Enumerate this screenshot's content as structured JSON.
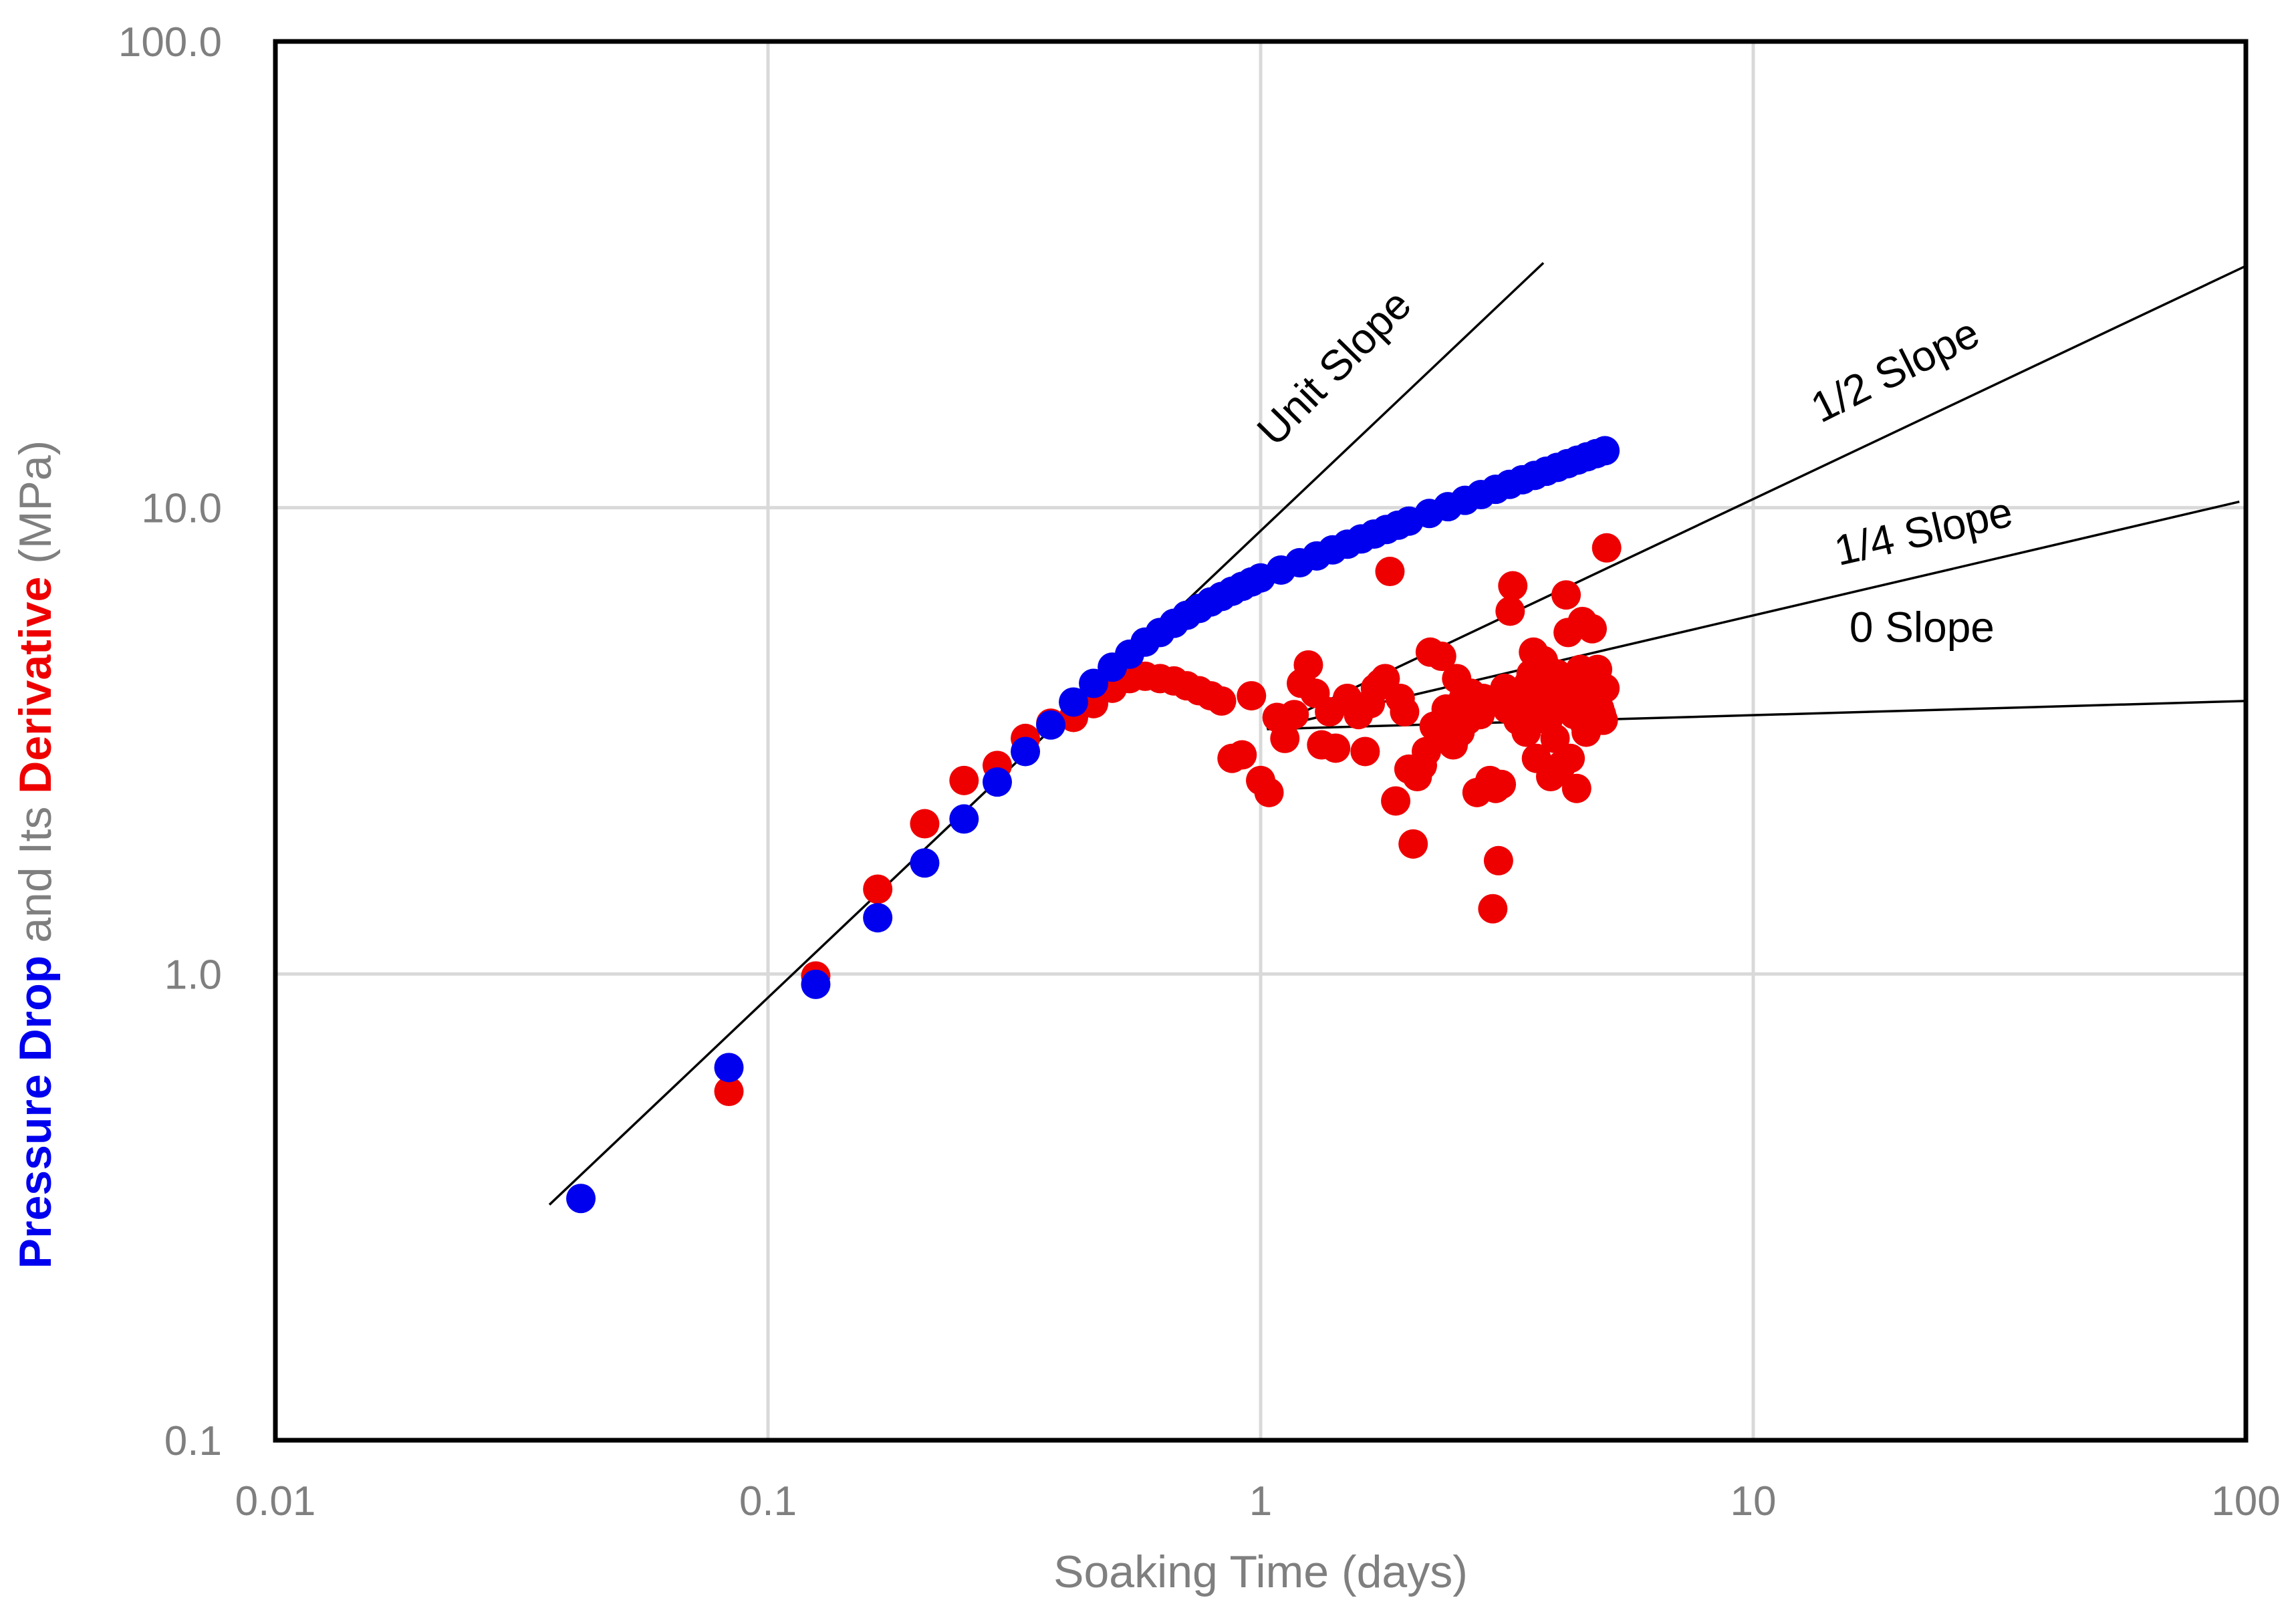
{
  "chart_data": {
    "type": "scatter",
    "xscale": "log",
    "yscale": "log",
    "xlim": [
      0.01,
      100
    ],
    "ylim": [
      0.1,
      100
    ],
    "grid": true,
    "legend": "none",
    "xlabel": "Soaking Time (days)",
    "ylabel_parts": [
      {
        "text": "Pressure Drop",
        "color": "#0000ee",
        "bold": true
      },
      {
        "text": " and Its ",
        "color": "#7f7f7f",
        "bold": false
      },
      {
        "text": "Derivative",
        "color": "#ee0000",
        "bold": true
      },
      {
        "text": " (MPa)",
        "color": "#7f7f7f",
        "bold": false
      }
    ],
    "xticks": [
      {
        "value": 0.01,
        "label": "0.01"
      },
      {
        "value": 0.1,
        "label": "0.1"
      },
      {
        "value": 1,
        "label": "1"
      },
      {
        "value": 10,
        "label": "10"
      },
      {
        "value": 100,
        "label": "100"
      }
    ],
    "yticks": [
      {
        "value": 0.1,
        "label": "0.1"
      },
      {
        "value": 1,
        "label": "1.0"
      },
      {
        "value": 10,
        "label": "10.0"
      },
      {
        "value": 100,
        "label": "100.0"
      }
    ],
    "series": [
      {
        "color": "#0000ee",
        "points": [
          [
            0.0417,
            0.33
          ],
          [
            0.0833,
            0.63
          ],
          [
            0.125,
            0.95
          ],
          [
            0.167,
            1.32
          ],
          [
            0.208,
            1.73
          ],
          [
            0.25,
            2.15
          ],
          [
            0.292,
            2.58
          ],
          [
            0.333,
            3.0
          ],
          [
            0.375,
            3.42
          ],
          [
            0.417,
            3.83
          ],
          [
            0.458,
            4.2
          ],
          [
            0.5,
            4.55
          ],
          [
            0.542,
            4.85
          ],
          [
            0.583,
            5.15
          ],
          [
            0.625,
            5.4
          ],
          [
            0.667,
            5.65
          ],
          [
            0.708,
            5.88
          ],
          [
            0.75,
            6.08
          ],
          [
            0.792,
            6.28
          ],
          [
            0.833,
            6.45
          ],
          [
            0.875,
            6.62
          ],
          [
            0.917,
            6.78
          ],
          [
            0.958,
            6.93
          ],
          [
            1.0,
            7.07
          ],
          [
            1.1,
            7.35
          ],
          [
            1.2,
            7.62
          ],
          [
            1.3,
            7.88
          ],
          [
            1.4,
            8.12
          ],
          [
            1.5,
            8.35
          ],
          [
            1.6,
            8.57
          ],
          [
            1.7,
            8.78
          ],
          [
            1.8,
            8.98
          ],
          [
            1.9,
            9.17
          ],
          [
            2.0,
            9.36
          ],
          [
            2.2,
            9.72
          ],
          [
            2.4,
            10.05
          ],
          [
            2.6,
            10.37
          ],
          [
            2.8,
            10.67
          ],
          [
            3.0,
            10.95
          ],
          [
            3.2,
            11.22
          ],
          [
            3.4,
            11.48
          ],
          [
            3.6,
            11.73
          ],
          [
            3.8,
            11.97
          ],
          [
            4.0,
            12.2
          ],
          [
            4.2,
            12.43
          ],
          [
            4.4,
            12.65
          ],
          [
            4.6,
            12.86
          ],
          [
            4.8,
            13.06
          ],
          [
            5.0,
            13.25
          ]
        ]
      },
      {
        "color": "#ee0000",
        "points": [
          [
            0.0833,
            0.56
          ],
          [
            0.125,
            0.99
          ],
          [
            0.167,
            1.52
          ],
          [
            0.208,
            2.1
          ],
          [
            0.25,
            2.6
          ],
          [
            0.292,
            2.8
          ],
          [
            0.333,
            3.2
          ],
          [
            0.375,
            3.45
          ],
          [
            0.417,
            3.55
          ],
          [
            0.458,
            3.8
          ],
          [
            0.5,
            4.1
          ],
          [
            0.542,
            4.3
          ],
          [
            0.583,
            4.35
          ],
          [
            0.625,
            4.3
          ],
          [
            0.667,
            4.25
          ],
          [
            0.708,
            4.15
          ],
          [
            0.75,
            4.05
          ],
          [
            0.792,
            3.95
          ],
          [
            0.833,
            3.85
          ],
          [
            0.875,
            2.9
          ],
          [
            0.917,
            2.95
          ],
          [
            0.958,
            3.95
          ],
          [
            1.0,
            2.6
          ],
          [
            1.04,
            2.45
          ],
          [
            1.08,
            3.55
          ],
          [
            1.12,
            3.2
          ],
          [
            1.17,
            3.6
          ],
          [
            1.21,
            4.2
          ],
          [
            1.25,
            4.6
          ],
          [
            1.29,
            4.0
          ],
          [
            1.33,
            3.1
          ],
          [
            1.38,
            3.65
          ],
          [
            1.42,
            3.05
          ],
          [
            1.5,
            3.9
          ],
          [
            1.58,
            3.6
          ],
          [
            1.63,
            3.0
          ],
          [
            1.67,
            3.8
          ],
          [
            1.71,
            4.1
          ],
          [
            1.75,
            4.2
          ],
          [
            1.79,
            4.3
          ],
          [
            1.83,
            7.3
          ],
          [
            1.88,
            2.35
          ],
          [
            1.92,
            3.9
          ],
          [
            1.96,
            3.65
          ],
          [
            2.0,
            2.75
          ],
          [
            2.04,
            1.9
          ],
          [
            2.08,
            2.65
          ],
          [
            2.13,
            2.8
          ],
          [
            2.17,
            3.0
          ],
          [
            2.21,
            4.9
          ],
          [
            2.25,
            3.4
          ],
          [
            2.29,
            3.35
          ],
          [
            2.33,
            4.8
          ],
          [
            2.38,
            3.7
          ],
          [
            2.42,
            3.2
          ],
          [
            2.46,
            3.1
          ],
          [
            2.5,
            4.3
          ],
          [
            2.54,
            3.3
          ],
          [
            2.58,
            3.9
          ],
          [
            2.63,
            3.5
          ],
          [
            2.67,
            4.0
          ],
          [
            2.71,
            3.75
          ],
          [
            2.75,
            2.45
          ],
          [
            2.79,
            3.6
          ],
          [
            2.83,
            3.9
          ],
          [
            2.88,
            3.8
          ],
          [
            2.92,
            2.6
          ],
          [
            2.96,
            1.38
          ],
          [
            3.0,
            2.5
          ],
          [
            3.04,
            1.75
          ],
          [
            3.08,
            2.55
          ],
          [
            3.13,
            4.1
          ],
          [
            3.17,
            3.7
          ],
          [
            3.21,
            6.0
          ],
          [
            3.25,
            6.8
          ],
          [
            3.29,
            3.65
          ],
          [
            3.33,
            3.5
          ],
          [
            3.38,
            4.05
          ],
          [
            3.42,
            3.95
          ],
          [
            3.46,
            3.3
          ],
          [
            3.5,
            4.2
          ],
          [
            3.54,
            4.4
          ],
          [
            3.58,
            4.9
          ],
          [
            3.63,
            2.9
          ],
          [
            3.67,
            4.3
          ],
          [
            3.71,
            3.8
          ],
          [
            3.75,
            4.7
          ],
          [
            3.79,
            3.6
          ],
          [
            3.83,
            3.5
          ],
          [
            3.88,
            2.65
          ],
          [
            3.92,
            4.0
          ],
          [
            3.96,
            3.2
          ],
          [
            4.0,
            4.4
          ],
          [
            4.04,
            3.7
          ],
          [
            4.08,
            2.8
          ],
          [
            4.13,
            3.9
          ],
          [
            4.17,
            6.5
          ],
          [
            4.21,
            5.4
          ],
          [
            4.25,
            2.9
          ],
          [
            4.29,
            4.1
          ],
          [
            4.33,
            3.6
          ],
          [
            4.38,
            2.5
          ],
          [
            4.42,
            3.8
          ],
          [
            4.46,
            4.5
          ],
          [
            4.5,
            5.7
          ],
          [
            4.54,
            3.45
          ],
          [
            4.58,
            3.3
          ],
          [
            4.63,
            4.3
          ],
          [
            4.67,
            3.9
          ],
          [
            4.71,
            5.5
          ],
          [
            4.75,
            3.5
          ],
          [
            4.79,
            4.2
          ],
          [
            4.83,
            4.5
          ],
          [
            4.88,
            3.7
          ],
          [
            4.92,
            3.6
          ],
          [
            4.96,
            3.5
          ],
          [
            5.0,
            4.1
          ],
          [
            5.04,
            8.2
          ]
        ]
      }
    ],
    "reference_lines": [
      {
        "label": "Unit Slope",
        "from": [
          0.036,
          0.32
        ],
        "to": [
          3.75,
          33.5
        ]
      },
      {
        "label": "1/2 Slope",
        "from": [
          1.03,
          3.35
        ],
        "to": [
          100,
          33.0
        ]
      },
      {
        "label": "1/4 Slope",
        "from": [
          1.03,
          3.35
        ],
        "to": [
          97,
          10.3
        ]
      },
      {
        "label": "0 Slope",
        "from": [
          1.03,
          3.35
        ],
        "to": [
          100,
          3.85
        ]
      }
    ],
    "annotations": [
      {
        "text": "Unit Slope",
        "x": 1.48,
        "y": 19.0,
        "angle": -45.5
      },
      {
        "text": "1/2 Slope",
        "x": 20.0,
        "y": 18.5,
        "angle": -26.5
      },
      {
        "text": "1/4 Slope",
        "x": 22.5,
        "y": 8.3,
        "angle": -13
      },
      {
        "text": "0 Slope",
        "x": 22.0,
        "y": 5.15,
        "angle": 0
      }
    ]
  }
}
